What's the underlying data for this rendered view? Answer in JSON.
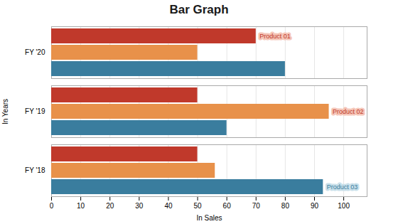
{
  "chart_data": {
    "type": "bar",
    "orientation": "horizontal",
    "title": "Bar Graph",
    "xlabel": "In Sales",
    "ylabel": "In Years",
    "categories": [
      "FY '18",
      "FY '19",
      "FY '20"
    ],
    "series": [
      {
        "name": "Product 01",
        "color": "#c0392b",
        "values": [
          50,
          50,
          70
        ]
      },
      {
        "name": "Product 02",
        "color": "#e8914a",
        "values": [
          56,
          95,
          50
        ]
      },
      {
        "name": "Product 03",
        "color": "#3a7d9e",
        "values": [
          93,
          60,
          80
        ]
      }
    ],
    "annotations": [
      {
        "series": "Product 01",
        "category": "FY '20",
        "color": "#c0392b",
        "background": "#f5c6b8"
      },
      {
        "series": "Product 02",
        "category": "FY '19",
        "color": "#c0392b",
        "background": "#f5c6b8"
      },
      {
        "series": "Product 03",
        "category": "FY '18",
        "color": "#3a7d9e",
        "background": "#c9e0ea"
      }
    ],
    "xlim": [
      0,
      108
    ],
    "xticks": [
      0,
      10,
      20,
      30,
      40,
      50,
      60,
      70,
      80,
      90,
      100
    ],
    "grid": true
  }
}
